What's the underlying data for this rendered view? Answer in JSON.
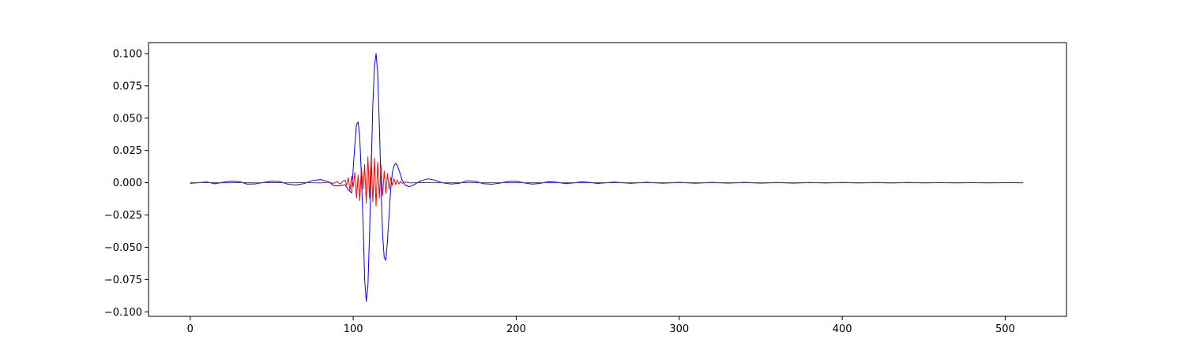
{
  "chart_data": {
    "type": "line",
    "title": "",
    "xlabel": "",
    "ylabel": "",
    "xlim": [
      -25.6,
      537.6
    ],
    "ylim": [
      -0.1035,
      0.1085
    ],
    "xticks": [
      0,
      100,
      200,
      300,
      400,
      500
    ],
    "xtick_labels": [
      "0",
      "100",
      "200",
      "300",
      "400",
      "500"
    ],
    "yticks": [
      -0.1,
      -0.075,
      -0.05,
      -0.025,
      0.0,
      0.025,
      0.05,
      0.075,
      0.1
    ],
    "ytick_labels": [
      "−0.100",
      "−0.075",
      "−0.050",
      "−0.025",
      "0.000",
      "0.025",
      "0.050",
      "0.075",
      "0.100"
    ],
    "grid": false,
    "legend": "none",
    "series": [
      {
        "color": "#0000ff",
        "x": [
          0,
          5,
          10,
          15,
          20,
          25,
          30,
          35,
          40,
          45,
          50,
          55,
          60,
          65,
          70,
          75,
          80,
          85,
          88,
          92,
          95,
          97,
          99,
          101,
          102,
          103,
          104,
          105,
          106,
          107,
          108,
          109,
          110,
          111,
          112,
          113,
          114,
          115,
          116,
          117,
          118,
          119,
          120,
          121,
          122,
          123,
          124,
          125,
          126,
          127,
          128,
          130,
          132,
          134,
          136,
          138,
          140,
          143,
          146,
          150,
          153,
          156,
          160,
          165,
          170,
          175,
          180,
          185,
          190,
          195,
          200,
          205,
          210,
          215,
          220,
          225,
          230,
          235,
          240,
          245,
          250,
          260,
          270,
          280,
          290,
          300,
          310,
          320,
          330,
          340,
          350,
          360,
          370,
          380,
          390,
          400,
          410,
          420,
          430,
          440,
          450,
          460,
          470,
          480,
          490,
          500,
          511
        ],
        "y": [
          -0.0005,
          0.0,
          0.0006,
          -0.0008,
          0.0003,
          0.0012,
          0.0009,
          -0.0011,
          -0.0009,
          0.0002,
          0.0013,
          0.0008,
          -0.0012,
          -0.0018,
          -0.0006,
          0.0017,
          0.0024,
          0.0007,
          -0.0022,
          -0.0025,
          -0.0015,
          -0.0055,
          -0.008,
          0.03,
          0.045,
          0.047,
          0.035,
          0.005,
          -0.03,
          -0.075,
          -0.092,
          -0.08,
          -0.04,
          0.01,
          0.06,
          0.09,
          0.1,
          0.085,
          0.045,
          0.0,
          -0.04,
          -0.058,
          -0.06,
          -0.045,
          -0.025,
          -0.005,
          0.008,
          0.013,
          0.015,
          0.0135,
          0.01,
          0.002,
          -0.002,
          -0.003,
          -0.0025,
          -0.001,
          0.0005,
          0.002,
          0.003,
          0.002,
          0.0005,
          -0.0003,
          -0.001,
          -0.0005,
          0.0015,
          0.001,
          -0.0008,
          -0.0012,
          -0.0003,
          0.0009,
          0.0011,
          -0.0002,
          -0.0011,
          -0.0004,
          0.0008,
          0.0004,
          -0.0007,
          -0.0002,
          0.0007,
          0.0003,
          -0.0006,
          0.0005,
          -0.0005,
          0.0004,
          -0.0004,
          0.0003,
          -0.0004,
          0.0003,
          -0.0003,
          0.0003,
          -0.0003,
          0.0002,
          -0.0003,
          0.0002,
          -0.0002,
          0.0002,
          -0.0002,
          0.0002,
          -0.0002,
          0.0002,
          -0.0001,
          0.0001,
          -0.0001,
          0.0001,
          -0.0001,
          0.0001,
          0.0
        ]
      },
      {
        "color": "#ff0000",
        "x": [
          0,
          10,
          20,
          30,
          40,
          50,
          60,
          70,
          80,
          85,
          88,
          90,
          92,
          94,
          95,
          96,
          97,
          98,
          99,
          100,
          101,
          102,
          103,
          104,
          105,
          106,
          107,
          108,
          109,
          110,
          111,
          112,
          113,
          114,
          115,
          116,
          117,
          118,
          119,
          120,
          121,
          122,
          123,
          124,
          125,
          126,
          127,
          128,
          129,
          130,
          132,
          135,
          140,
          150,
          160,
          170,
          180,
          200,
          250,
          300,
          400,
          511
        ],
        "y": [
          0.0,
          0.0001,
          -0.0001,
          0.0001,
          -0.0001,
          0.0001,
          -0.0001,
          0.0001,
          -0.0002,
          0.0003,
          -0.0005,
          0.0008,
          -0.001,
          0.0015,
          0.002,
          -0.002,
          0.004,
          -0.006,
          0.005,
          -0.003,
          0.008,
          -0.012,
          0.006,
          -0.014,
          0.012,
          -0.005,
          0.014,
          -0.016,
          0.02,
          -0.012,
          0.021,
          -0.015,
          0.019,
          -0.018,
          0.016,
          -0.012,
          0.014,
          -0.01,
          0.009,
          -0.008,
          0.007,
          -0.005,
          0.004,
          -0.002,
          0.003,
          -0.0015,
          0.002,
          -0.001,
          0.001,
          -0.0005,
          0.0005,
          -0.0002,
          0.0001,
          0.0,
          0.0,
          0.0,
          0.0,
          0.0,
          0.0,
          0.0,
          0.0,
          0.0
        ]
      }
    ]
  }
}
